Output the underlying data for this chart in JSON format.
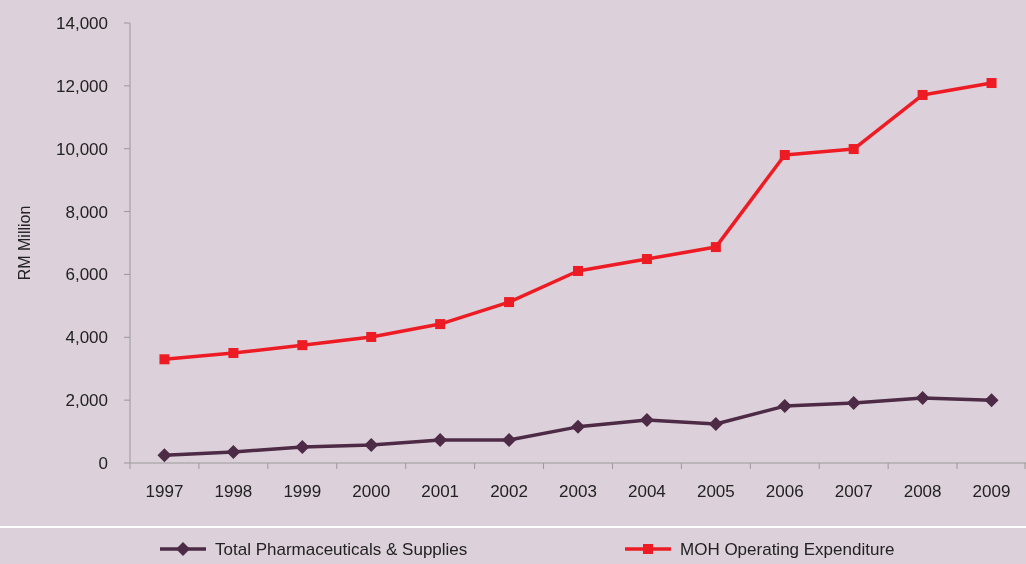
{
  "chart_data": {
    "type": "line",
    "ylabel": "RM Million",
    "categories": [
      "1997",
      "1998",
      "1999",
      "2000",
      "2001",
      "2002",
      "2003",
      "2004",
      "2005",
      "2006",
      "2007",
      "2008",
      "2009"
    ],
    "series": [
      {
        "name": "Total Pharmaceuticals & Supplies",
        "color": "#4d2a45",
        "marker": "diamond",
        "values": [
          250,
          350,
          510,
          570,
          730,
          730,
          1150,
          1370,
          1240,
          1810,
          1910,
          2070,
          2000
        ]
      },
      {
        "name": "MOH Operating Expenditure",
        "color": "#ed1c24",
        "marker": "square",
        "values": [
          3300,
          3500,
          3750,
          4010,
          4420,
          5120,
          6110,
          6490,
          6870,
          9800,
          9990,
          11710,
          12090
        ]
      }
    ],
    "ylim": [
      0,
      14000
    ],
    "yticks": [
      {
        "value": 0,
        "label": "0"
      },
      {
        "value": 2000,
        "label": "2,000"
      },
      {
        "value": 4000,
        "label": "4,000"
      },
      {
        "value": 6000,
        "label": "6,000"
      },
      {
        "value": 8000,
        "label": "8,000"
      },
      {
        "value": 10000,
        "label": "10,000"
      },
      {
        "value": 12000,
        "label": "12,000"
      },
      {
        "value": 14000,
        "label": "14,000"
      }
    ],
    "grid": false,
    "legend": "bottom"
  }
}
